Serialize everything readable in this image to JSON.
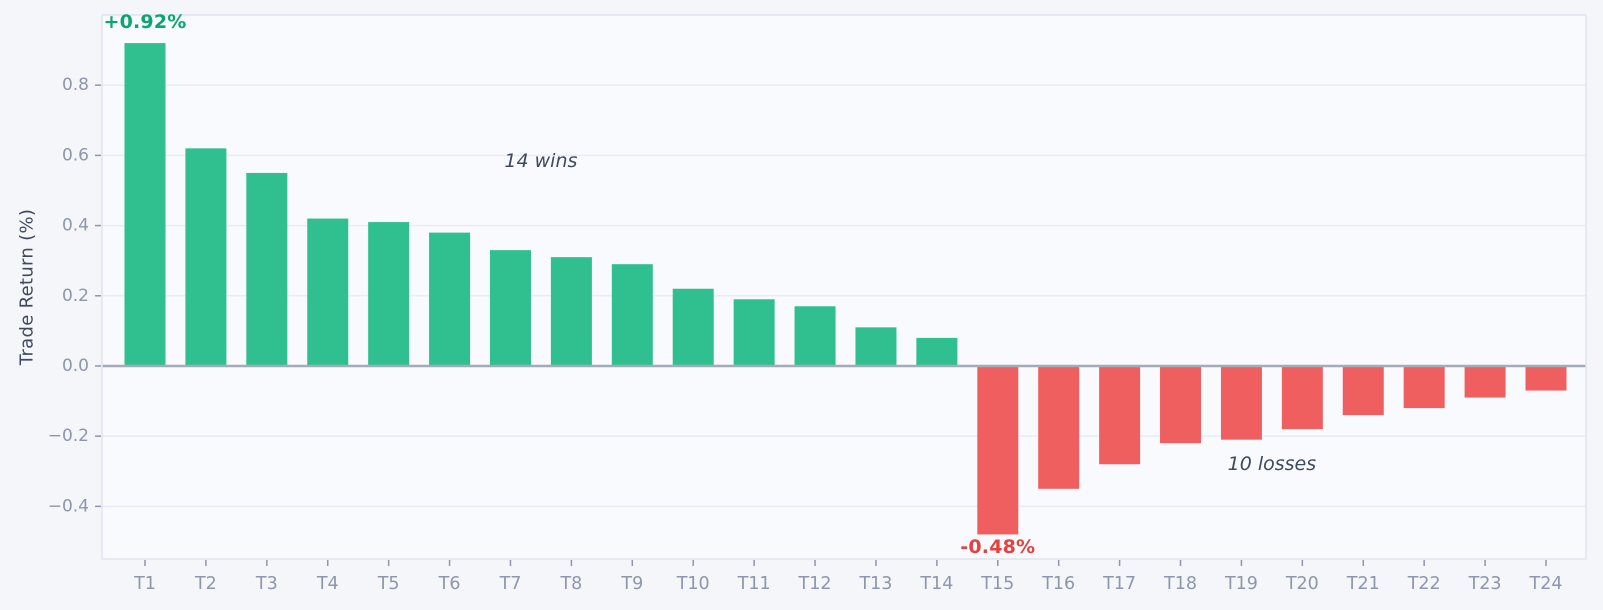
{
  "chart_data": {
    "type": "bar",
    "title": "",
    "xlabel": "",
    "ylabel": "Trade Return (%)",
    "categories": [
      "T1",
      "T2",
      "T3",
      "T4",
      "T5",
      "T6",
      "T7",
      "T8",
      "T9",
      "T10",
      "T11",
      "T12",
      "T13",
      "T14",
      "T15",
      "T16",
      "T17",
      "T18",
      "T19",
      "T20",
      "T21",
      "T22",
      "T23",
      "T24"
    ],
    "values": [
      0.92,
      0.62,
      0.55,
      0.42,
      0.41,
      0.38,
      0.33,
      0.31,
      0.29,
      0.22,
      0.19,
      0.17,
      0.11,
      0.08,
      -0.48,
      -0.35,
      -0.28,
      -0.22,
      -0.21,
      -0.18,
      -0.14,
      -0.12,
      -0.09,
      -0.07
    ],
    "wins_count": 14,
    "losses_count": 10,
    "ylim": [
      -0.55,
      1.0
    ],
    "yticks": [
      {
        "value": 0.8,
        "label": "0.8"
      },
      {
        "value": 0.6,
        "label": "0.6"
      },
      {
        "value": 0.4,
        "label": "0.4"
      },
      {
        "value": 0.2,
        "label": "0.2"
      },
      {
        "value": 0.0,
        "label": "0.0"
      },
      {
        "value": -0.2,
        "label": "−0.2"
      },
      {
        "value": -0.4,
        "label": "−0.4"
      }
    ],
    "grid": true,
    "zero_line": true,
    "legend": null,
    "annotations": {
      "peak": {
        "text": "+0.92%",
        "x_index": 0,
        "y": 0.98,
        "color": "#0aa66e"
      },
      "trough": {
        "text": "-0.48%",
        "x_index": 14,
        "y": -0.515,
        "color": "#e64141"
      },
      "wins": {
        "text": "14 wins",
        "x_index": 6.5,
        "y": 0.585,
        "color": "#3e4a5c"
      },
      "losses": {
        "text": "10 losses",
        "x_index": 18.5,
        "y": -0.28,
        "color": "#3e4a5c"
      }
    },
    "colors": {
      "win_bar": "#30bf8e",
      "loss_bar": "#f05f5f",
      "tick_text": "#8d96aa",
      "axis_title_text": "#3e4a5c",
      "grid": "#e9ecf4",
      "plot_border": "#dfe3ef",
      "zero_line": "#a3abbb",
      "plot_bg": "#f9fafd",
      "figure_bg": "#f5f6fa"
    }
  }
}
